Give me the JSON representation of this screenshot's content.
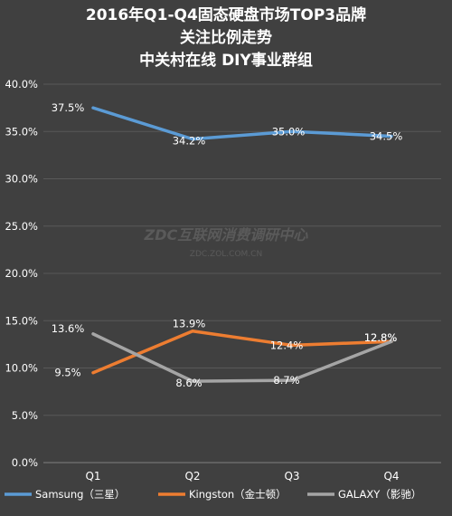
{
  "chart_data": {
    "type": "line",
    "title": [
      "2016年Q1-Q4固态硬盘市场TOP3品牌",
      "关注比例走势",
      "中关村在线 DIY事业群组"
    ],
    "categories": [
      "Q1",
      "Q2",
      "Q3",
      "Q4"
    ],
    "ylim": [
      0,
      40
    ],
    "yticks": [
      0,
      5,
      10,
      15,
      20,
      25,
      30,
      35,
      40
    ],
    "ytick_labels": [
      "0.0%",
      "5.0%",
      "10.0%",
      "15.0%",
      "20.0%",
      "25.0%",
      "30.0%",
      "35.0%",
      "40.0%"
    ],
    "grid": true,
    "legend_position": "bottom",
    "series": [
      {
        "name": "Samsung（三星）",
        "color": "#5b9bd5",
        "values": [
          37.5,
          34.2,
          35.0,
          34.5
        ],
        "labels": [
          "37.5%",
          "34.2%",
          "35.0%",
          "34.5%"
        ]
      },
      {
        "name": "Kingston（金士顿）",
        "color": "#ed7d31",
        "values": [
          9.5,
          13.9,
          12.4,
          12.8
        ],
        "labels": [
          "9.5%",
          "13.9%",
          "12.4%",
          "12.8%"
        ]
      },
      {
        "name": "GALAXY（影驰）",
        "color": "#a5a5a5",
        "values": [
          13.6,
          8.6,
          8.7,
          12.8
        ],
        "labels": [
          "13.6%",
          "8.6%",
          "8.7%",
          "12.8%"
        ]
      }
    ],
    "watermark": [
      "ZDC互联网消费调研中心",
      "ZDC.ZOL.COM.CN"
    ]
  }
}
